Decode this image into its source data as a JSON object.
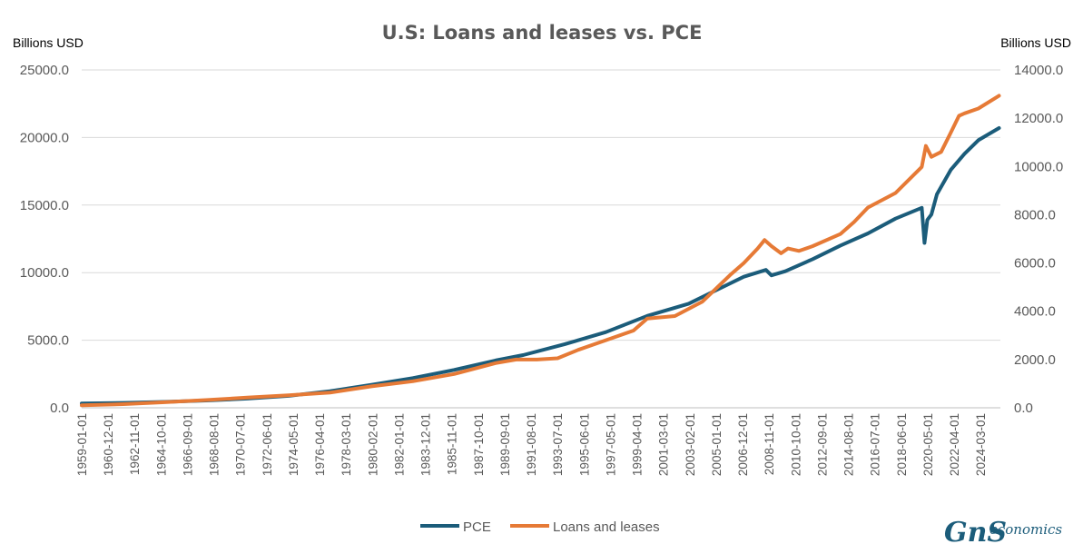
{
  "chart_data": {
    "type": "line",
    "title": "U.S: Loans and leases vs. PCE",
    "ylabel_left": "Billions USD",
    "ylabel_right": "Billions USD",
    "ylim_left": [
      0,
      25000
    ],
    "ylim_right": [
      0,
      14000
    ],
    "yticks_left": [
      "0.0",
      "5000.0",
      "10000.0",
      "15000.0",
      "20000.0",
      "25000.0"
    ],
    "yticks_right": [
      "0.0",
      "2000.0",
      "4000.0",
      "6000.0",
      "8000.0",
      "10000.0",
      "12000.0",
      "14000.0"
    ],
    "xlim": [
      1959.0,
      2025.6
    ],
    "xticks": [
      "1959-01-01",
      "1960-12-01",
      "1962-11-01",
      "1964-10-01",
      "1966-09-01",
      "1968-08-01",
      "1970-07-01",
      "1972-06-01",
      "1974-05-01",
      "1976-04-01",
      "1978-03-01",
      "1980-02-01",
      "1982-01-01",
      "1983-12-01",
      "1985-11-01",
      "1987-10-01",
      "1989-09-01",
      "1991-08-01",
      "1993-07-01",
      "1995-06-01",
      "1997-05-01",
      "1999-04-01",
      "2001-03-01",
      "2003-02-01",
      "2005-01-01",
      "2006-12-01",
      "2008-11-01",
      "2010-10-01",
      "2012-09-01",
      "2014-08-01",
      "2016-07-01",
      "2018-06-01",
      "2020-05-01",
      "2022-04-01",
      "2024-03-01"
    ],
    "grid": true,
    "legend_position": "bottom-center",
    "series": [
      {
        "name": "PCE",
        "axis": "left",
        "color": "#1b5c7a",
        "x": [
          1959,
          1962,
          1965,
          1968,
          1971,
          1974,
          1977,
          1980,
          1983,
          1986,
          1989,
          1991,
          1994,
          1997,
          2000,
          2003,
          2005,
          2007,
          2008.6,
          2009,
          2010,
          2012,
          2014,
          2016,
          2018,
          2019.9,
          2020.1,
          2020.3,
          2020.6,
          2021,
          2022,
          2023,
          2024,
          2025.5
        ],
        "values": [
          320,
          360,
          440,
          540,
          680,
          880,
          1230,
          1700,
          2200,
          2800,
          3500,
          3900,
          4700,
          5600,
          6800,
          7700,
          8700,
          9700,
          10200,
          9800,
          10100,
          11000,
          12000,
          12900,
          14000,
          14800,
          12200,
          13900,
          14300,
          15800,
          17600,
          18800,
          19800,
          20700
        ]
      },
      {
        "name": "Loans and leases",
        "axis": "right",
        "color": "#e67a36",
        "x": [
          1959,
          1962,
          1965,
          1968,
          1971,
          1974,
          1977,
          1980,
          1983,
          1986,
          1989,
          1990.5,
          1992,
          1993.5,
          1995,
          1997,
          1999,
          2000,
          2002,
          2004,
          2006,
          2007,
          2008,
          2008.5,
          2009,
          2009.7,
          2010.2,
          2011,
          2012,
          2014,
          2015,
          2016,
          2018,
          2019.9,
          2020.2,
          2020.6,
          2021.3,
          2022,
          2022.6,
          2023,
          2024,
          2025.5
        ],
        "values": [
          100,
          150,
          230,
          320,
          420,
          520,
          630,
          890,
          1100,
          1400,
          1850,
          2000,
          2000,
          2050,
          2400,
          2800,
          3200,
          3700,
          3800,
          4400,
          5500,
          6000,
          6600,
          6950,
          6700,
          6400,
          6600,
          6500,
          6700,
          7200,
          7700,
          8300,
          8900,
          9980,
          10850,
          10400,
          10600,
          11400,
          12100,
          12200,
          12400,
          12930
        ]
      }
    ],
    "logo": {
      "brand": "GnS",
      "tagline": "economics"
    }
  }
}
